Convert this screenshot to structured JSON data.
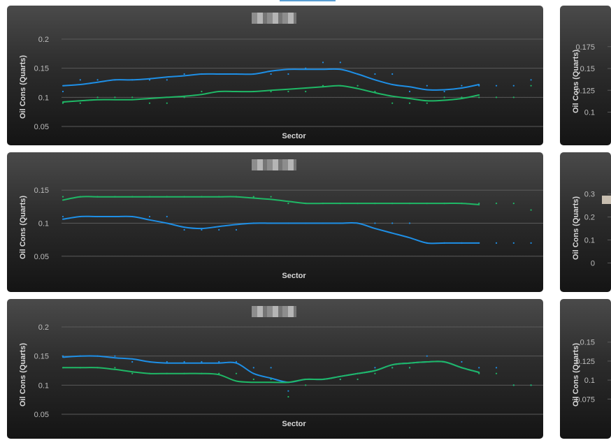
{
  "chart_data": [
    {
      "type": "line",
      "title": "",
      "xlabel": "Sector",
      "ylabel": "Oil Cons (Quarts)",
      "ylim": [
        0.05,
        0.2
      ],
      "yticks": [
        "0.2",
        "0.15",
        "0.1",
        "0.05"
      ],
      "x": [
        1,
        2,
        3,
        4,
        5,
        6,
        7,
        8,
        9,
        10,
        11,
        12,
        13,
        14,
        15,
        16,
        17,
        18,
        19,
        20,
        21,
        22,
        23,
        24,
        25,
        26,
        27,
        28
      ],
      "series": [
        {
          "color": "#1e8fe6",
          "trend": [
            0.12,
            0.122,
            0.126,
            0.13,
            0.13,
            0.132,
            0.135,
            0.137,
            0.14,
            0.14,
            0.14,
            0.14,
            0.145,
            0.148,
            0.148,
            0.148,
            0.148,
            0.14,
            0.13,
            0.122,
            0.118,
            0.113,
            0.113,
            0.116,
            0.122
          ],
          "points": [
            0.11,
            0.13,
            0.13,
            0.13,
            0.13,
            0.13,
            0.13,
            0.14,
            0.14,
            0.14,
            0.14,
            0.14,
            0.14,
            0.14,
            0.15,
            0.16,
            0.16,
            0.14,
            0.14,
            0.14,
            0.11,
            0.12,
            0.11,
            0.12,
            0.12,
            0.12,
            0.12,
            0.13
          ]
        },
        {
          "color": "#1fb866",
          "trend": [
            0.092,
            0.094,
            0.096,
            0.096,
            0.096,
            0.098,
            0.1,
            0.102,
            0.105,
            0.11,
            0.11,
            0.11,
            0.112,
            0.114,
            0.116,
            0.118,
            0.12,
            0.115,
            0.108,
            0.102,
            0.098,
            0.094,
            0.095,
            0.098,
            0.104
          ],
          "points": [
            0.09,
            0.09,
            0.1,
            0.1,
            0.1,
            0.09,
            0.09,
            0.1,
            0.11,
            0.11,
            0.11,
            0.11,
            0.11,
            0.11,
            0.11,
            0.12,
            0.12,
            0.12,
            0.11,
            0.09,
            0.09,
            0.09,
            0.1,
            0.1,
            0.1,
            0.1,
            0.1,
            0.12
          ]
        }
      ]
    },
    {
      "type": "line",
      "title": "",
      "xlabel": "Sector",
      "ylabel": "Oil Cons (Quarts)",
      "ylim": [
        0.035,
        0.165
      ],
      "yticks": [
        "0.15",
        "0.1",
        "0.05"
      ],
      "x": [
        1,
        2,
        3,
        4,
        5,
        6,
        7,
        8,
        9,
        10,
        11,
        12,
        13,
        14,
        15,
        16,
        17,
        18,
        19,
        20,
        21,
        22,
        23,
        24,
        25,
        26,
        27,
        28
      ],
      "series": [
        {
          "color": "#1fb866",
          "trend": [
            0.135,
            0.14,
            0.14,
            0.14,
            0.14,
            0.14,
            0.14,
            0.14,
            0.14,
            0.14,
            0.14,
            0.138,
            0.136,
            0.133,
            0.13,
            0.13,
            0.13,
            0.13,
            0.13,
            0.13,
            0.13,
            0.13,
            0.13,
            0.13,
            0.128
          ],
          "points": [
            0.14,
            0.14,
            0.14,
            0.14,
            0.14,
            0.14,
            0.14,
            0.14,
            0.14,
            0.14,
            0.14,
            0.14,
            0.14,
            0.13,
            0.13,
            0.13,
            0.13,
            0.13,
            0.13,
            0.13,
            0.13,
            0.13,
            0.13,
            0.13,
            0.13,
            0.13,
            0.13,
            0.12
          ]
        },
        {
          "color": "#1e8fe6",
          "trend": [
            0.106,
            0.11,
            0.11,
            0.11,
            0.11,
            0.105,
            0.1,
            0.094,
            0.092,
            0.095,
            0.098,
            0.1,
            0.1,
            0.1,
            0.1,
            0.1,
            0.1,
            0.1,
            0.092,
            0.085,
            0.078,
            0.07,
            0.07,
            0.07,
            0.07
          ],
          "points": [
            0.11,
            0.11,
            0.11,
            0.11,
            0.11,
            0.11,
            0.11,
            0.09,
            0.09,
            0.09,
            0.09,
            0.1,
            0.1,
            0.1,
            0.1,
            0.1,
            0.1,
            0.1,
            0.1,
            0.1,
            0.1,
            0.07,
            0.07,
            0.07,
            0.07,
            0.07,
            0.07,
            0.07
          ]
        }
      ]
    },
    {
      "type": "line",
      "title": "",
      "xlabel": "Sector",
      "ylabel": "Oil Cons (Quarts)",
      "ylim": [
        0.05,
        0.2
      ],
      "yticks": [
        "0.2",
        "0.15",
        "0.1",
        "0.05"
      ],
      "x": [
        1,
        2,
        3,
        4,
        5,
        6,
        7,
        8,
        9,
        10,
        11,
        12,
        13,
        14,
        15,
        16,
        17,
        18,
        19,
        20,
        21,
        22,
        23,
        24,
        25,
        26,
        27,
        28
      ],
      "series": [
        {
          "color": "#1e8fe6",
          "trend": [
            0.148,
            0.15,
            0.15,
            0.147,
            0.145,
            0.14,
            0.138,
            0.138,
            0.138,
            0.138,
            0.138,
            0.12,
            0.112,
            0.105,
            0.11,
            0.11,
            0.115,
            0.12,
            0.125,
            0.135,
            0.138,
            0.14,
            0.14,
            0.13,
            0.122
          ],
          "points": [
            0.15,
            0.15,
            0.15,
            0.15,
            0.14,
            0.14,
            0.14,
            0.14,
            0.14,
            0.14,
            0.14,
            0.13,
            0.13,
            0.09,
            0.11,
            0.11,
            0.11,
            0.12,
            0.13,
            0.13,
            0.13,
            0.15,
            0.14,
            0.14,
            0.13,
            0.13,
            0.1,
            0.1
          ]
        },
        {
          "color": "#1fb866",
          "trend": [
            0.13,
            0.13,
            0.13,
            0.127,
            0.123,
            0.12,
            0.12,
            0.12,
            0.12,
            0.118,
            0.107,
            0.105,
            0.105,
            0.105,
            0.11,
            0.11,
            0.115,
            0.12,
            0.125,
            0.135,
            0.138,
            0.14,
            0.14,
            0.13,
            0.122
          ],
          "points": [
            0.13,
            0.13,
            0.13,
            0.13,
            0.12,
            0.12,
            0.12,
            0.12,
            0.12,
            0.12,
            0.12,
            0.11,
            0.11,
            0.08,
            0.1,
            0.11,
            0.11,
            0.11,
            0.12,
            0.13,
            0.13,
            0.14,
            0.14,
            0.13,
            0.12,
            0.12,
            0.1,
            0.1
          ]
        }
      ]
    },
    {
      "type": "line",
      "title": "",
      "xlabel": "",
      "ylabel": "Oil Cons (Quarts)",
      "ylim": [
        0.09,
        0.19
      ],
      "yticks": [
        "0.175",
        "0.15",
        "0.125",
        "0.1"
      ]
    },
    {
      "type": "line",
      "title": "",
      "xlabel": "",
      "ylabel": "Oil Cons (Quarts)",
      "ylim": [
        -0.02,
        0.36
      ],
      "yticks": [
        "0.3",
        "0.2",
        "0.1",
        "0"
      ]
    },
    {
      "type": "line",
      "title": "",
      "xlabel": "",
      "ylabel": "Oil Cons (Quarts)",
      "ylim": [
        0.055,
        0.17
      ],
      "yticks": [
        "0.15",
        "0.125",
        "0.1",
        "0.075"
      ]
    }
  ]
}
